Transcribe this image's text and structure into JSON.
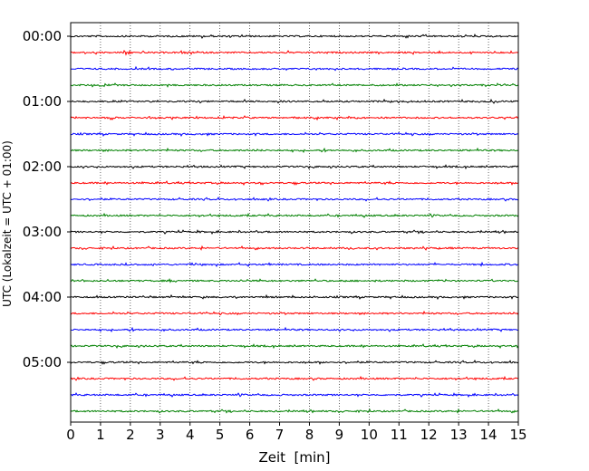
{
  "chart_data": {
    "type": "line",
    "title": "",
    "xlabel": "Zeit  [min]",
    "ylabel": "UTC (Lokalzeit = UTC + 01:00)",
    "xlim": [
      0,
      15
    ],
    "x_ticks": [
      0,
      1,
      2,
      3,
      4,
      5,
      6,
      7,
      8,
      9,
      10,
      11,
      12,
      13,
      14,
      15
    ],
    "x_tick_labels": [
      "0",
      "1",
      "2",
      "3",
      "4",
      "5",
      "6",
      "7",
      "8",
      "9",
      "10",
      "11",
      "12",
      "13",
      "14",
      "15"
    ],
    "y_tick_labels": [
      "00:00",
      "01:00",
      "02:00",
      "03:00",
      "04:00",
      "05:00"
    ],
    "minutes_per_trace": 15,
    "trace_colors": [
      "#000000",
      "#ff0000",
      "#0000ff",
      "#008000"
    ],
    "grid": "vertical dotted lines at each minute",
    "traces": [
      {
        "start": "00:00",
        "color": "#000000"
      },
      {
        "start": "00:15",
        "color": "#ff0000",
        "event_at_min": 1.8
      },
      {
        "start": "00:30",
        "color": "#0000ff"
      },
      {
        "start": "00:45",
        "color": "#008000"
      },
      {
        "start": "01:00",
        "color": "#000000"
      },
      {
        "start": "01:15",
        "color": "#ff0000"
      },
      {
        "start": "01:30",
        "color": "#0000ff"
      },
      {
        "start": "01:45",
        "color": "#008000"
      },
      {
        "start": "02:00",
        "color": "#000000"
      },
      {
        "start": "02:15",
        "color": "#ff0000"
      },
      {
        "start": "02:30",
        "color": "#0000ff"
      },
      {
        "start": "02:45",
        "color": "#008000"
      },
      {
        "start": "03:00",
        "color": "#000000"
      },
      {
        "start": "03:15",
        "color": "#ff0000"
      },
      {
        "start": "03:30",
        "color": "#0000ff"
      },
      {
        "start": "03:45",
        "color": "#008000"
      },
      {
        "start": "04:00",
        "color": "#000000"
      },
      {
        "start": "04:15",
        "color": "#ff0000"
      },
      {
        "start": "04:30",
        "color": "#0000ff"
      },
      {
        "start": "04:45",
        "color": "#008000"
      },
      {
        "start": "05:00",
        "color": "#000000"
      },
      {
        "start": "05:15",
        "color": "#ff0000"
      },
      {
        "start": "05:30",
        "color": "#0000ff"
      },
      {
        "start": "05:45",
        "color": "#008000"
      }
    ]
  }
}
